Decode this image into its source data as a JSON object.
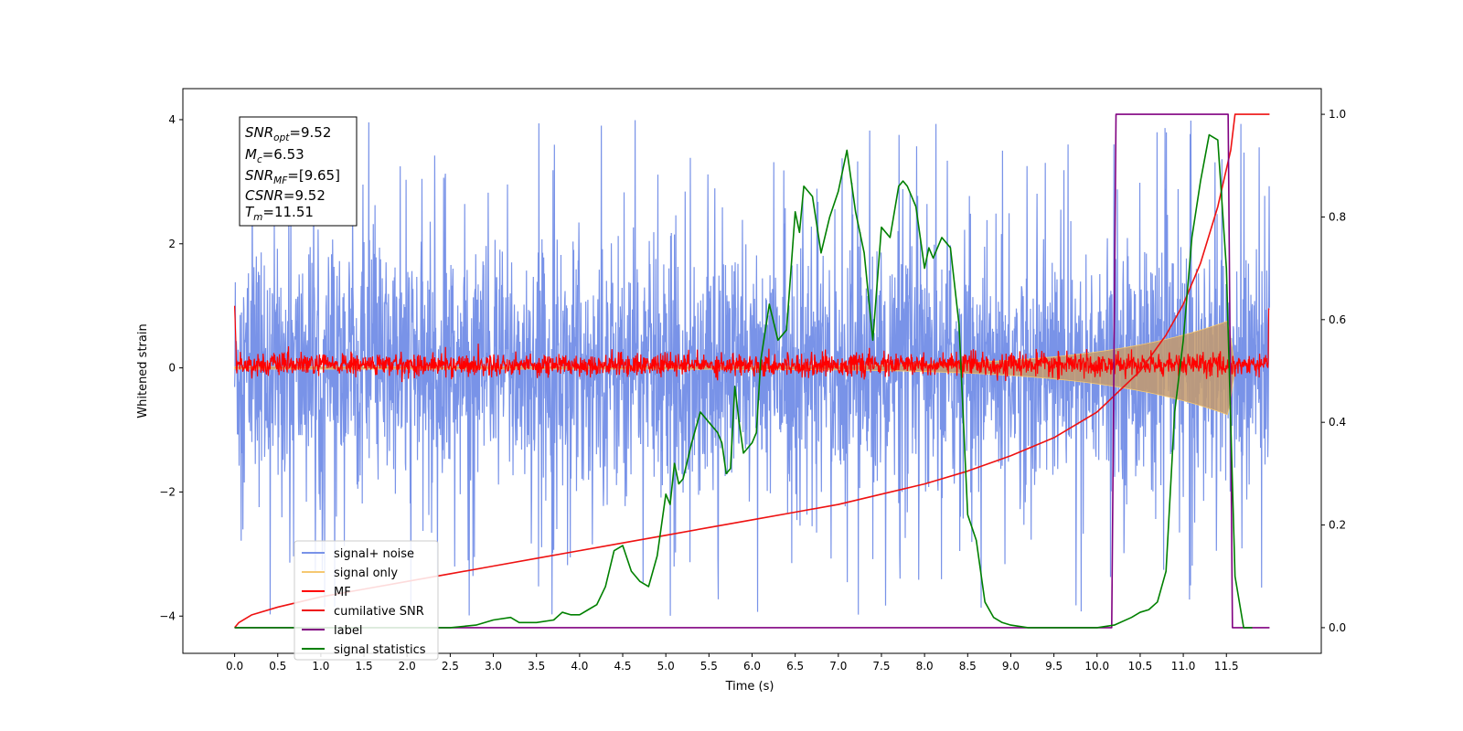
{
  "chart_data": {
    "type": "line",
    "xlabel": "Time (s)",
    "ylabel": "Whitened strain",
    "xlim": [
      -0.6,
      12.6
    ],
    "ylim": [
      -4.6,
      4.5
    ],
    "y2lim": [
      -0.05,
      1.05
    ],
    "x_ticks": [
      "0.0",
      "0.5",
      "1.0",
      "1.5",
      "2.0",
      "2.5",
      "3.0",
      "3.5",
      "4.0",
      "4.5",
      "5.0",
      "5.5",
      "6.0",
      "6.5",
      "7.0",
      "7.5",
      "8.0",
      "8.5",
      "9.0",
      "9.5",
      "10.0",
      "10.5",
      "11.0",
      "11.5"
    ],
    "y_ticks": [
      "4",
      "2",
      "0",
      "−2",
      "−4"
    ],
    "y2_ticks": [
      "1.0",
      "0.8",
      "0.6",
      "0.4",
      "0.2",
      "0.0"
    ],
    "grid": false,
    "legend_position": "lower-left",
    "info_box": {
      "snr_opt": {
        "base": "SNR",
        "sub": "opt",
        "value": "=9.52"
      },
      "mc": {
        "base": "M",
        "sub": "c",
        "value": "=6.53"
      },
      "snr_mf": {
        "base": "SNR",
        "sub": "MF",
        "value": "=[9.65]"
      },
      "csnr": {
        "base": "CSNR",
        "sub": "",
        "value": "=9.52"
      },
      "tm": {
        "base": "T",
        "sub": "m",
        "value": "=11.51"
      }
    },
    "series": [
      {
        "name": "signal+ noise",
        "color": "#7993e8",
        "kind": "noise",
        "envelope_amplitude": 1.6,
        "spike_max": 4.0,
        "time_range": [
          0,
          12.0
        ]
      },
      {
        "name": "signal only",
        "color": "#f5c871",
        "kind": "chirp",
        "amplitude_range": [
          0.02,
          0.8
        ],
        "time_range": [
          0,
          11.6
        ]
      },
      {
        "name": "MF",
        "color": "#ff0000",
        "kind": "noise",
        "envelope_amplitude": 0.18,
        "time_range": [
          0,
          12.0
        ]
      },
      {
        "name": "cumilative SNR",
        "color": "#ee1111",
        "kind": "line",
        "axis": "right",
        "x": [
          0,
          0.05,
          0.2,
          0.5,
          1.0,
          1.5,
          2.0,
          2.5,
          3.0,
          3.5,
          4.0,
          4.5,
          5.0,
          5.5,
          6.0,
          6.5,
          7.0,
          7.5,
          8.0,
          8.5,
          9.0,
          9.5,
          10.0,
          10.5,
          10.8,
          11.0,
          11.2,
          11.4,
          11.55,
          11.6,
          12.0
        ],
        "y": [
          0.0,
          0.01,
          0.025,
          0.04,
          0.06,
          0.075,
          0.09,
          0.105,
          0.12,
          0.135,
          0.15,
          0.165,
          0.18,
          0.195,
          0.21,
          0.225,
          0.24,
          0.26,
          0.28,
          0.305,
          0.335,
          0.37,
          0.42,
          0.5,
          0.57,
          0.63,
          0.71,
          0.82,
          0.93,
          1.0,
          1.0
        ]
      },
      {
        "name": "label",
        "color": "#800080",
        "kind": "line",
        "axis": "right",
        "x": [
          0,
          10.17,
          10.22,
          11.52,
          11.57,
          12.0
        ],
        "y": [
          0.0,
          0.0,
          1.0,
          1.0,
          0.0,
          0.0
        ]
      },
      {
        "name": "signal statistics",
        "color": "#008000",
        "kind": "line",
        "axis": "right",
        "x": [
          0,
          0.5,
          1.0,
          1.5,
          2.0,
          2.5,
          2.8,
          3.0,
          3.2,
          3.3,
          3.5,
          3.7,
          3.8,
          3.9,
          4.0,
          4.1,
          4.2,
          4.3,
          4.4,
          4.5,
          4.6,
          4.7,
          4.8,
          4.9,
          5.0,
          5.05,
          5.1,
          5.15,
          5.2,
          5.3,
          5.4,
          5.5,
          5.6,
          5.65,
          5.7,
          5.75,
          5.8,
          5.85,
          5.9,
          6.0,
          6.05,
          6.1,
          6.2,
          6.3,
          6.4,
          6.5,
          6.55,
          6.6,
          6.7,
          6.8,
          6.9,
          7.0,
          7.1,
          7.2,
          7.3,
          7.4,
          7.5,
          7.6,
          7.7,
          7.75,
          7.8,
          7.9,
          8.0,
          8.05,
          8.1,
          8.15,
          8.2,
          8.3,
          8.4,
          8.5,
          8.6,
          8.7,
          8.8,
          8.9,
          9.0,
          9.2,
          9.5,
          10.0,
          10.2,
          10.4,
          10.5,
          10.6,
          10.7,
          10.8,
          10.9,
          11.0,
          11.1,
          11.2,
          11.3,
          11.4,
          11.5,
          11.6,
          11.7,
          11.8
        ],
        "y": [
          0.0,
          0.0,
          0.0,
          0.0,
          0.0,
          0.0,
          0.005,
          0.015,
          0.02,
          0.01,
          0.01,
          0.015,
          0.03,
          0.025,
          0.025,
          0.035,
          0.045,
          0.08,
          0.15,
          0.16,
          0.11,
          0.09,
          0.08,
          0.14,
          0.26,
          0.24,
          0.32,
          0.28,
          0.29,
          0.36,
          0.42,
          0.4,
          0.38,
          0.36,
          0.3,
          0.31,
          0.47,
          0.4,
          0.34,
          0.36,
          0.38,
          0.52,
          0.63,
          0.56,
          0.58,
          0.81,
          0.77,
          0.86,
          0.84,
          0.73,
          0.8,
          0.85,
          0.93,
          0.81,
          0.73,
          0.56,
          0.78,
          0.76,
          0.86,
          0.87,
          0.86,
          0.82,
          0.7,
          0.74,
          0.72,
          0.74,
          0.76,
          0.74,
          0.59,
          0.22,
          0.17,
          0.05,
          0.02,
          0.01,
          0.005,
          0.0,
          0.0,
          0.0,
          0.005,
          0.02,
          0.03,
          0.035,
          0.05,
          0.11,
          0.42,
          0.56,
          0.76,
          0.87,
          0.96,
          0.95,
          0.7,
          0.1,
          0.0,
          0.0
        ]
      }
    ]
  }
}
